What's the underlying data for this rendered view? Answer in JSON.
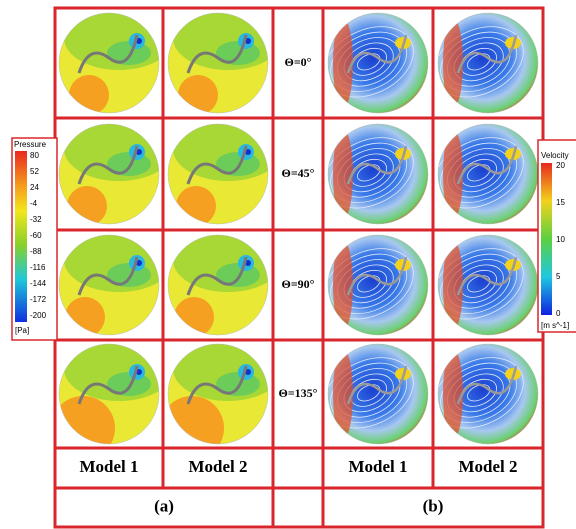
{
  "pressure_legend": {
    "title": "Pressure",
    "ticks": [
      80,
      52,
      24,
      -4,
      -32,
      -60,
      -88,
      -116,
      -144,
      -172,
      -200
    ],
    "unit": "[Pa]"
  },
  "velocity_legend": {
    "title": "Velocity",
    "ticks": [
      20,
      15,
      10,
      5,
      0
    ],
    "unit": "[m s^-1]"
  },
  "rows": [
    "Θ=0°",
    "Θ=45°",
    "Θ=90°",
    "Θ=135°"
  ],
  "columns_a": [
    "Model 1",
    "Model 2"
  ],
  "columns_b": [
    "Model 1",
    "Model 2"
  ],
  "panel_labels": [
    "(a)",
    "(b)"
  ]
}
